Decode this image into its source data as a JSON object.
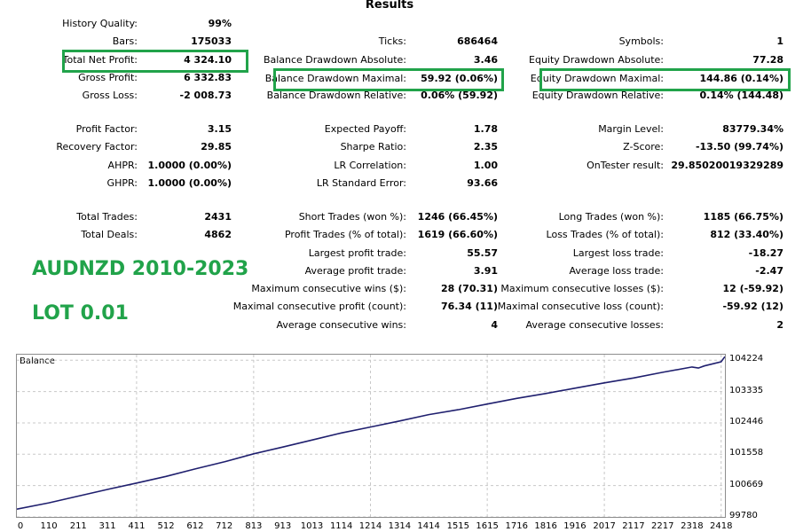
{
  "results": {
    "title": "Results",
    "history_quality": {
      "label": "History Quality:",
      "value": "99%"
    },
    "bars": {
      "label": "Bars:",
      "value": "175033"
    },
    "ticks": {
      "label": "Ticks:",
      "value": "686464"
    },
    "symbols": {
      "label": "Symbols:",
      "value": "1"
    },
    "total_net_profit": {
      "label": "Total Net Profit:",
      "value": "4 324.10"
    },
    "balance_drawdown_absolute": {
      "label": "Balance Drawdown Absolute:",
      "value": "3.46"
    },
    "equity_drawdown_absolute": {
      "label": "Equity Drawdown Absolute:",
      "value": "77.28"
    },
    "gross_profit": {
      "label": "Gross Profit:",
      "value": "6 332.83"
    },
    "balance_drawdown_maximal": {
      "label": "Balance Drawdown Maximal:",
      "value": "59.92 (0.06%)"
    },
    "equity_drawdown_maximal": {
      "label": "Equity Drawdown Maximal:",
      "value": "144.86 (0.14%)"
    },
    "gross_loss": {
      "label": "Gross Loss:",
      "value": "-2 008.73"
    },
    "balance_drawdown_relative": {
      "label": "Balance Drawdown Relative:",
      "value": "0.06% (59.92)"
    },
    "equity_drawdown_relative": {
      "label": "Equity Drawdown Relative:",
      "value": "0.14% (144.48)"
    },
    "profit_factor": {
      "label": "Profit Factor:",
      "value": "3.15"
    },
    "expected_payoff": {
      "label": "Expected Payoff:",
      "value": "1.78"
    },
    "margin_level": {
      "label": "Margin Level:",
      "value": "83779.34%"
    },
    "recovery_factor": {
      "label": "Recovery Factor:",
      "value": "29.85"
    },
    "sharpe_ratio": {
      "label": "Sharpe Ratio:",
      "value": "2.35"
    },
    "z_score": {
      "label": "Z-Score:",
      "value": "-13.50 (99.74%)"
    },
    "ahpr": {
      "label": "AHPR:",
      "value": "1.0000 (0.00%)"
    },
    "lr_correlation": {
      "label": "LR Correlation:",
      "value": "1.00"
    },
    "ontester_result": {
      "label": "OnTester result:",
      "value": "29.85020019329289"
    },
    "ghpr": {
      "label": "GHPR:",
      "value": "1.0000 (0.00%)"
    },
    "lr_standard_error": {
      "label": "LR Standard Error:",
      "value": "93.66"
    },
    "total_trades": {
      "label": "Total Trades:",
      "value": "2431"
    },
    "short_trades": {
      "label": "Short Trades (won %):",
      "value": "1246 (66.45%)"
    },
    "long_trades": {
      "label": "Long Trades (won %):",
      "value": "1185 (66.75%)"
    },
    "total_deals": {
      "label": "Total Deals:",
      "value": "4862"
    },
    "profit_trades": {
      "label": "Profit Trades (% of total):",
      "value": "1619 (66.60%)"
    },
    "loss_trades": {
      "label": "Loss Trades (% of total):",
      "value": "812 (33.40%)"
    },
    "largest_profit_trade": {
      "label": "Largest profit trade:",
      "value": "55.57"
    },
    "largest_loss_trade": {
      "label": "Largest loss trade:",
      "value": "-18.27"
    },
    "average_profit_trade": {
      "label": "Average profit trade:",
      "value": "3.91"
    },
    "average_loss_trade": {
      "label": "Average loss trade:",
      "value": "-2.47"
    },
    "max_consecutive_wins": {
      "label": "Maximum consecutive wins ($):",
      "value": "28 (70.31)"
    },
    "max_consecutive_losses": {
      "label": "Maximum consecutive losses ($):",
      "value": "12 (-59.92)"
    },
    "maximal_consecutive_profit": {
      "label": "Maximal consecutive profit (count):",
      "value": "76.34 (11)"
    },
    "maximal_consecutive_loss": {
      "label": "Maximal consecutive loss (count):",
      "value": "-59.92 (12)"
    },
    "average_consecutive_wins": {
      "label": "Average consecutive wins:",
      "value": "4"
    },
    "average_consecutive_losses": {
      "label": "Average consecutive losses:",
      "value": "2"
    }
  },
  "overlay": {
    "pair_period": "AUDNZD 2010-2023",
    "lot": "LOT 0.01",
    "highlight_color": "#21a34a"
  },
  "chart_data": {
    "type": "line",
    "title": "Balance",
    "line_color": "#1f1f6e",
    "grid": true,
    "ylim": [
      99780,
      104380
    ],
    "xlim": [
      0,
      2431
    ],
    "y_ticks": [
      "104224",
      "103335",
      "102446",
      "101558",
      "100669",
      "99780"
    ],
    "y_tick_values": [
      104224,
      103335,
      102446,
      101558,
      100669,
      99780
    ],
    "x_ticks": [
      "0",
      "110",
      "211",
      "311",
      "411",
      "512",
      "612",
      "712",
      "813",
      "913",
      "1013",
      "1114",
      "1214",
      "1314",
      "1414",
      "1515",
      "1615",
      "1716",
      "1816",
      "1916",
      "2017",
      "2117",
      "2217",
      "2318",
      "2418"
    ],
    "series": [
      {
        "x": [
          0,
          110,
          211,
          311,
          411,
          512,
          612,
          712,
          813,
          913,
          1013,
          1114,
          1214,
          1314,
          1414,
          1515,
          1615,
          1716,
          1816,
          1916,
          2017,
          2117,
          2217,
          2318,
          2340,
          2360,
          2418,
          2431
        ],
        "values": [
          100000,
          100180,
          100370,
          100560,
          100740,
          100930,
          101140,
          101340,
          101570,
          101760,
          101960,
          102160,
          102330,
          102500,
          102680,
          102820,
          102980,
          103140,
          103280,
          103430,
          103580,
          103720,
          103880,
          104030,
          104000,
          104060,
          104180,
          104324
        ]
      }
    ]
  }
}
